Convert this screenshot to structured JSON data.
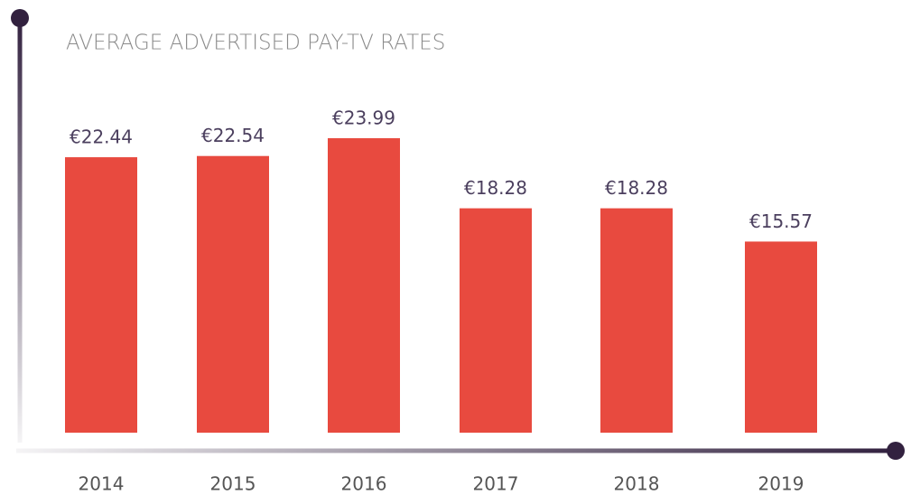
{
  "chart_data": {
    "type": "bar",
    "title": "AVERAGE ADVERTISED PAY-TV RATES",
    "categories": [
      "2014",
      "2015",
      "2016",
      "2017",
      "2018",
      "2019"
    ],
    "values": [
      22.44,
      22.54,
      23.99,
      18.28,
      18.28,
      15.57
    ],
    "value_labels": [
      "€22.44",
      "€22.54",
      "€23.99",
      "€18.28",
      "€18.28",
      "€15.57"
    ],
    "color": "#e84a3f"
  }
}
